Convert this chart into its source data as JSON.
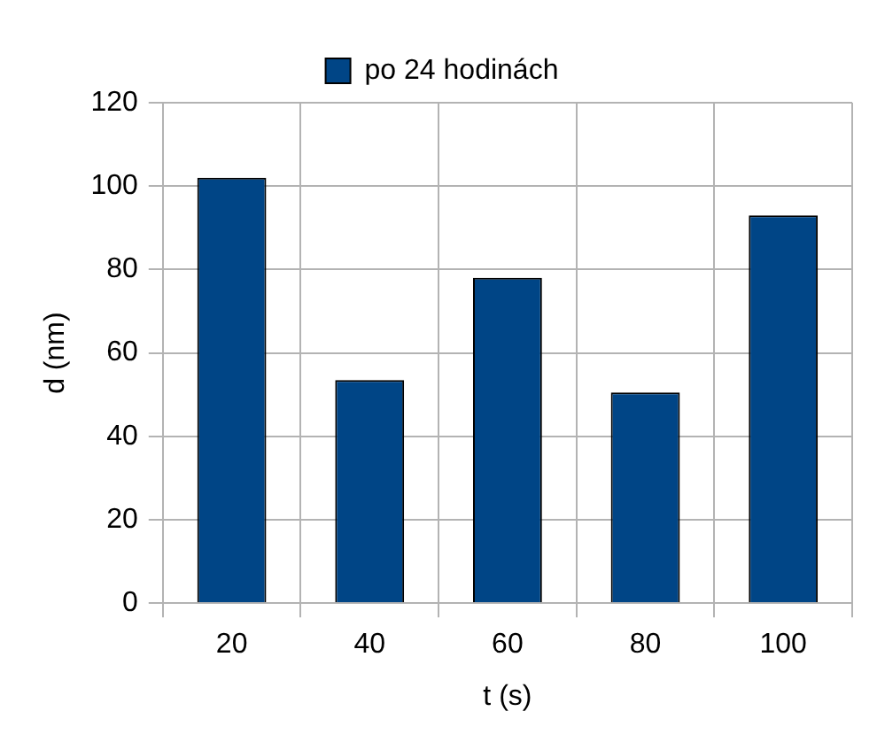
{
  "chart_data": {
    "type": "bar",
    "xlabel": "t (s)",
    "ylabel": "d (nm)",
    "categories": [
      "20",
      "40",
      "60",
      "80",
      "100"
    ],
    "series": [
      {
        "name": "po 24 hodinách",
        "color": "#004586",
        "values": [
          102,
          53.5,
          78,
          50.5,
          93
        ]
      }
    ],
    "ylim": [
      0,
      120
    ],
    "yticks": [
      0,
      20,
      40,
      60,
      80,
      100,
      120
    ],
    "grid": true,
    "legend": "top"
  }
}
